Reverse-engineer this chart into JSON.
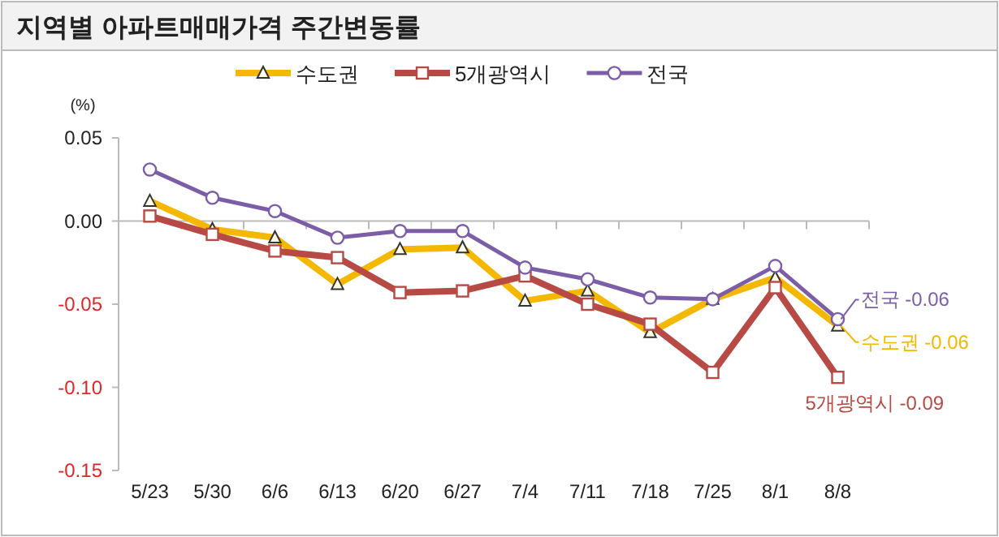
{
  "chart_data": {
    "type": "line",
    "title": "지역별 아파트매매가격 주간변동률",
    "ylabel": "(%)",
    "categories": [
      "5/23",
      "5/30",
      "6/6",
      "6/13",
      "6/20",
      "6/27",
      "7/4",
      "7/11",
      "7/18",
      "7/25",
      "8/1",
      "8/8"
    ],
    "series": [
      {
        "name": "수도권",
        "color": "#f5b800",
        "marker": "triangle",
        "values": [
          0.012,
          -0.005,
          -0.01,
          -0.038,
          -0.017,
          -0.016,
          -0.048,
          -0.042,
          -0.067,
          -0.047,
          -0.034,
          -0.063
        ]
      },
      {
        "name": "5개광역시",
        "color": "#b84a45",
        "marker": "square",
        "values": [
          0.003,
          -0.008,
          -0.018,
          -0.022,
          -0.043,
          -0.042,
          -0.033,
          -0.05,
          -0.062,
          -0.091,
          -0.04,
          -0.094
        ]
      },
      {
        "name": "전국",
        "color": "#7b5ea7",
        "marker": "circle",
        "values": [
          0.031,
          0.014,
          0.006,
          -0.01,
          -0.006,
          -0.006,
          -0.028,
          -0.035,
          -0.046,
          -0.047,
          -0.027,
          -0.059
        ]
      }
    ],
    "ylim": [
      -0.15,
      0.05
    ],
    "yticks": [
      {
        "value": 0.05,
        "label": "0.05"
      },
      {
        "value": 0,
        "label": "0.00"
      },
      {
        "value": -0.05,
        "label": "-0.05"
      },
      {
        "value": -0.1,
        "label": "-0.10"
      },
      {
        "value": -0.15,
        "label": "-0.15"
      }
    ],
    "legend": "top",
    "annotations": [
      {
        "text": "전국 -0.06",
        "x": "8/8",
        "y": -0.059
      },
      {
        "text": "수도권 -0.06",
        "x": "8/8",
        "y": -0.063
      },
      {
        "text": "5개광역시 -0.09",
        "x": "8/8",
        "y": -0.094
      }
    ]
  }
}
